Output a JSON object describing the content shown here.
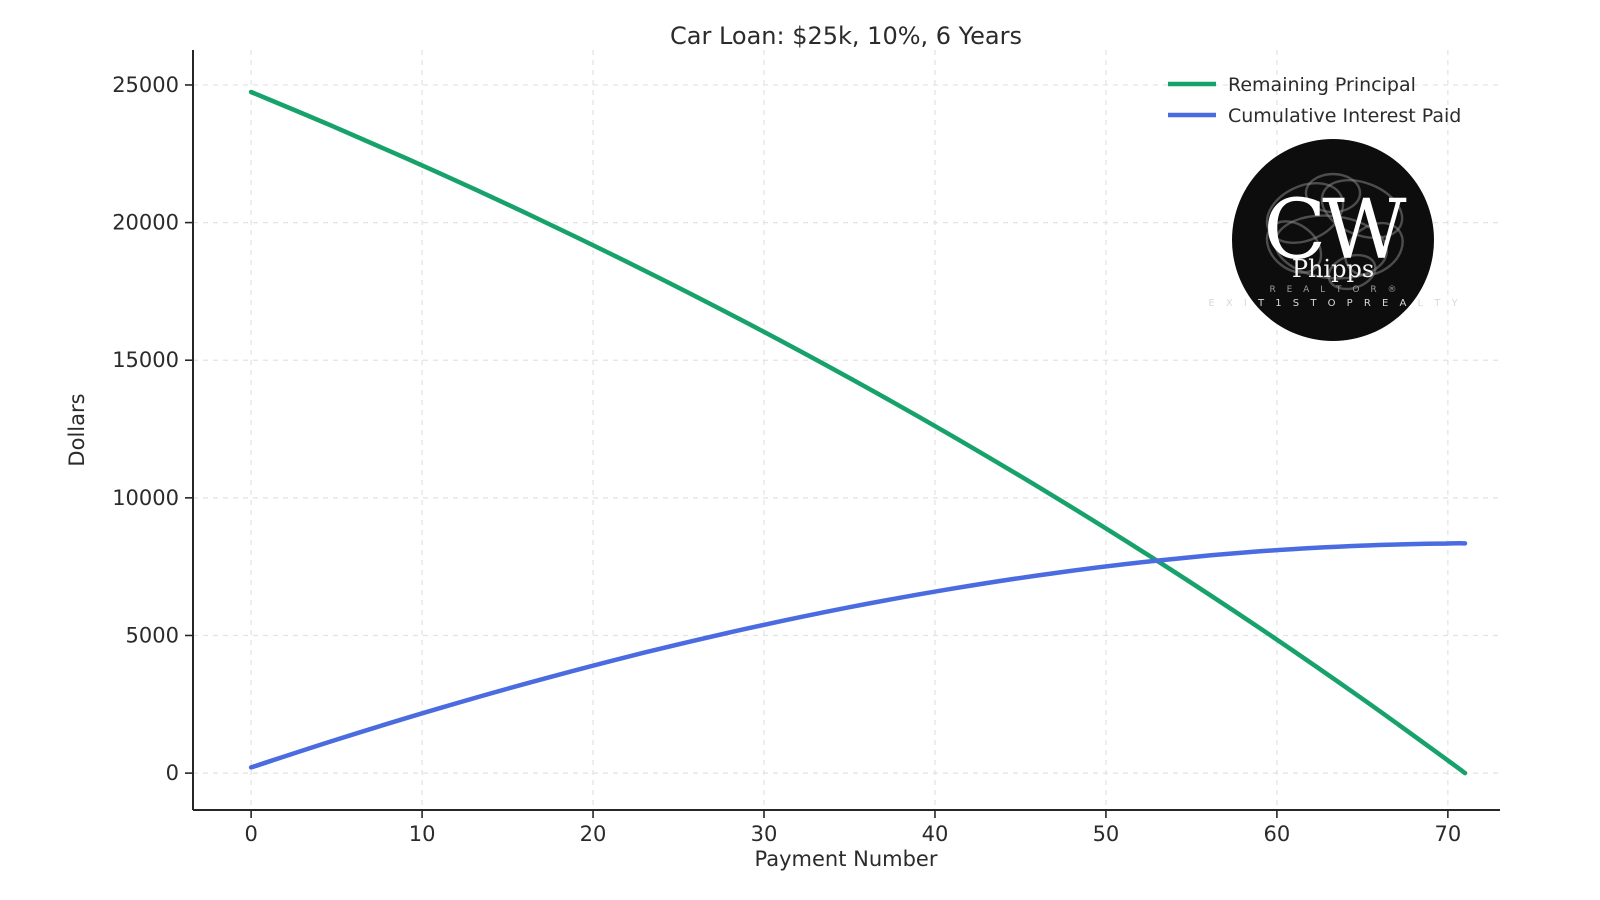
{
  "chart_data": {
    "type": "line",
    "title": "Car Loan: $25k, 10%, 6 Years",
    "xlabel": "Payment Number",
    "ylabel": "Dollars",
    "xticks": [
      0,
      10,
      20,
      30,
      40,
      50,
      60,
      70
    ],
    "yticks": [
      0,
      5000,
      10000,
      15000,
      20000,
      25000
    ],
    "xlim": [
      -3.4,
      73.05
    ],
    "ylim": [
      -1340,
      26270
    ],
    "grid": true,
    "legend_position": "upper right",
    "series": [
      {
        "name": "Remaining Principal",
        "color": "#17a26b",
        "points": [
          [
            0,
            24745
          ],
          [
            5,
            23439
          ],
          [
            11,
            21798
          ],
          [
            17,
            20074
          ],
          [
            23,
            18261
          ],
          [
            29,
            16356
          ],
          [
            35,
            14354
          ],
          [
            41,
            12249
          ],
          [
            47,
            10037
          ],
          [
            53,
            7712
          ],
          [
            59,
            5269
          ],
          [
            65,
            2700
          ],
          [
            70,
            460
          ],
          [
            71,
            0
          ]
        ]
      },
      {
        "name": "Cumulative Interest Paid",
        "color": "#4a6ce0",
        "points": [
          [
            0,
            208
          ],
          [
            5,
            1218
          ],
          [
            11,
            2356
          ],
          [
            17,
            3410
          ],
          [
            23,
            4377
          ],
          [
            29,
            5250
          ],
          [
            35,
            6027
          ],
          [
            41,
            6701
          ],
          [
            47,
            7268
          ],
          [
            53,
            7722
          ],
          [
            59,
            8057
          ],
          [
            65,
            8267
          ],
          [
            70,
            8343
          ],
          [
            71,
            8346
          ]
        ]
      }
    ]
  },
  "logo": {
    "monogram": "CW",
    "name": "Phipps",
    "designation": "R E A L T O R ®",
    "company": "E X I T   1   S T O P   R E A L T Y",
    "background_color": "#0d0d0d"
  }
}
